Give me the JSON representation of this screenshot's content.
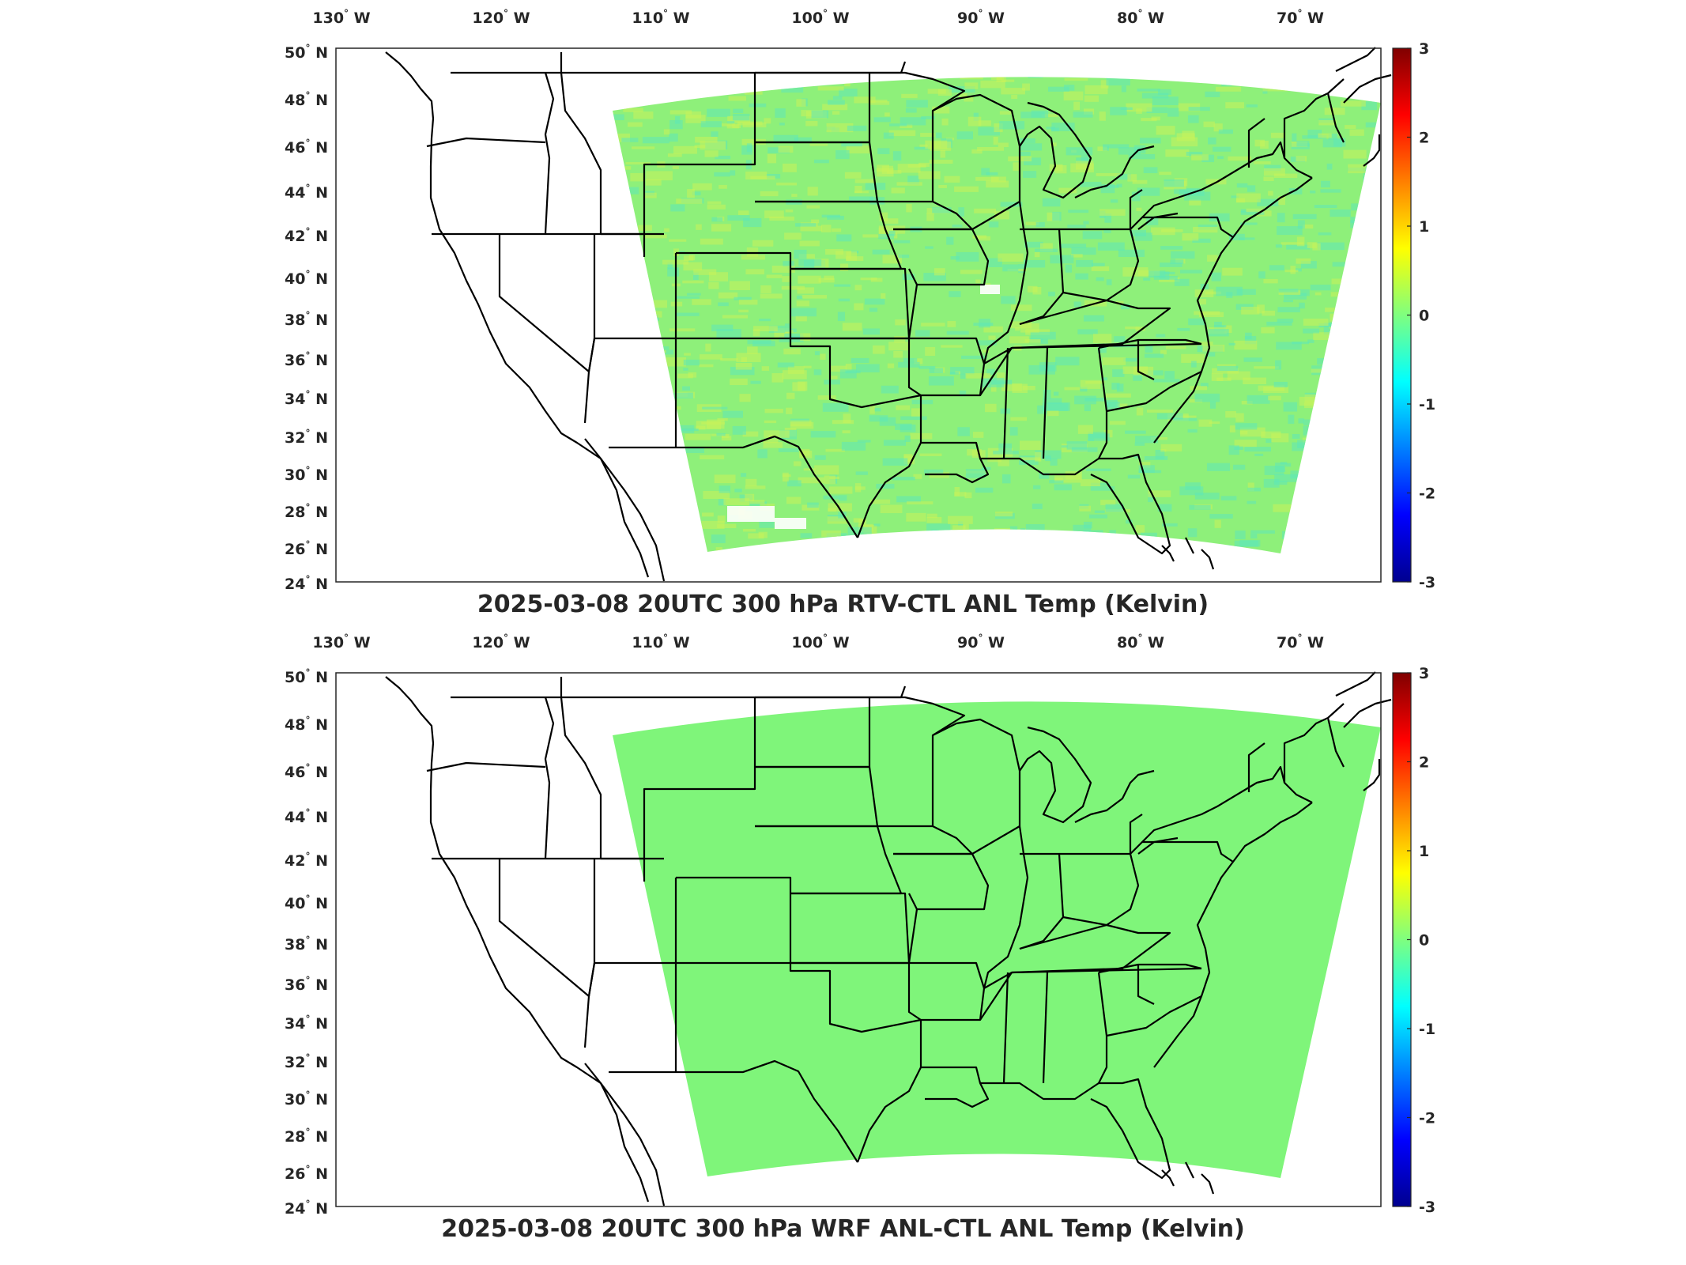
{
  "maps": [
    {
      "title": "2025-03-08 20UTC 300 hPa RTV-CTL ANL Temp (Kelvin)",
      "field_style": "noisy",
      "field_color": "#8ef07a"
    },
    {
      "title": "2025-03-08 20UTC 300 hPa WRF ANL-CTL ANL Temp (Kelvin)",
      "field_style": "uniform",
      "field_color": "#7ff57a"
    }
  ],
  "lon_labels": [
    "130",
    "120",
    "110",
    "100",
    "90",
    "80",
    "70"
  ],
  "lon_suffix": "W",
  "lat_labels": [
    "50",
    "48",
    "46",
    "44",
    "42",
    "40",
    "38",
    "36",
    "34",
    "32",
    "30",
    "28",
    "26",
    "24"
  ],
  "lat_suffix": "N",
  "degree_symbol": "°",
  "colorbar": {
    "ticks": [
      "3",
      "2",
      "1",
      "0",
      "-1",
      "-2",
      "-3"
    ],
    "range": [
      -3,
      3
    ],
    "colormap": "jet"
  },
  "colors": {
    "frame": "#262626",
    "borders": "#000000",
    "field_noisy_yellow": "#c8f35a",
    "field_noisy_cyan": "#5fe8b8"
  }
}
